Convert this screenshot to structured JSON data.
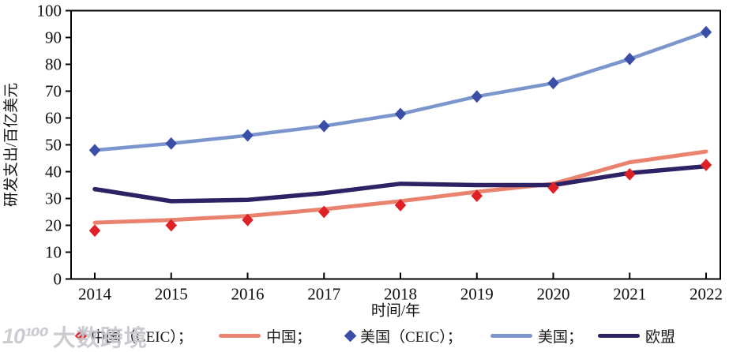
{
  "chart_data": {
    "type": "line",
    "title": "",
    "xlabel": "时间/年",
    "ylabel": "研发支出/百亿美元",
    "x": [
      2014,
      2015,
      2016,
      2017,
      2018,
      2019,
      2020,
      2021,
      2022
    ],
    "ylim": [
      0,
      100
    ],
    "y_ticks": [
      0,
      10,
      20,
      30,
      40,
      50,
      60,
      70,
      80,
      90,
      100
    ],
    "grid": false,
    "legend_position": "bottom",
    "series": [
      {
        "id": "china-ceic",
        "name": "中国（CEIC）",
        "type": "scatter",
        "marker": "diamond",
        "color": "#df2025",
        "values": [
          18,
          20,
          22,
          25,
          27.5,
          31,
          34,
          39,
          42.5
        ]
      },
      {
        "id": "china",
        "name": "中国",
        "type": "line",
        "color": "#e9836f",
        "width": 5,
        "values": [
          21,
          22,
          23.5,
          26,
          29,
          32.5,
          35.5,
          43.5,
          47.5
        ]
      },
      {
        "id": "us-ceic",
        "name": "美国（CEIC）",
        "type": "scatter",
        "marker": "diamond",
        "color": "#3a4ea6",
        "values": [
          48,
          50.5,
          53.5,
          57,
          61.5,
          68,
          73,
          82,
          92
        ]
      },
      {
        "id": "us",
        "name": "美国",
        "type": "line",
        "color": "#7b96cc",
        "width": 4.5,
        "values": [
          48,
          50.5,
          53.5,
          57,
          61.5,
          68,
          73,
          82,
          92
        ]
      },
      {
        "id": "eu",
        "name": "欧盟",
        "type": "line",
        "color": "#2e2164",
        "width": 5.5,
        "values": [
          33.5,
          29,
          29.5,
          32,
          35.5,
          35,
          35,
          39.5,
          42
        ]
      }
    ]
  },
  "legend": {
    "items": [
      {
        "label": "中国（CEIC）；",
        "marker": "diamond",
        "color": "#df2025"
      },
      {
        "label": "中国；",
        "marker": "line",
        "color": "#e9836f"
      },
      {
        "label": "美国（CEIC）；",
        "marker": "diamond",
        "color": "#3a4ea6"
      },
      {
        "label": "美国；",
        "marker": "line",
        "color": "#7b96cc"
      },
      {
        "label": "欧盟",
        "marker": "line",
        "color": "#2e2164"
      }
    ]
  },
  "watermark": {
    "logo_text": "10¹⁰⁰",
    "text": "大数跨境"
  }
}
